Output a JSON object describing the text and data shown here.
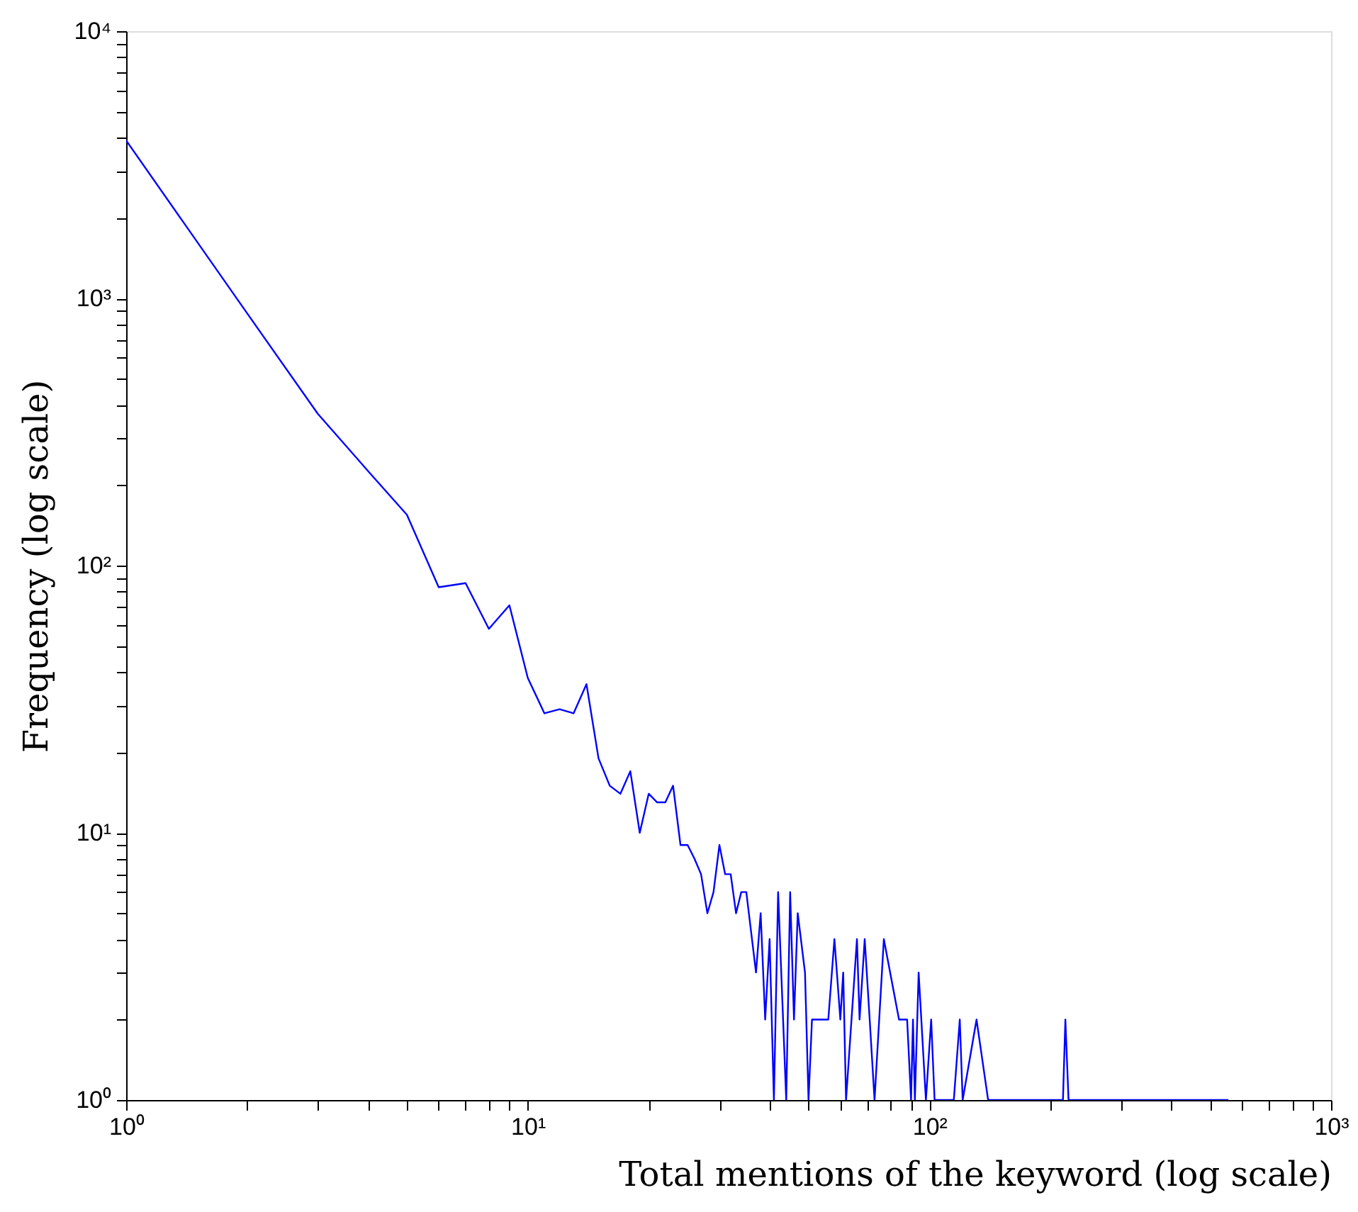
{
  "chart_data": {
    "type": "line",
    "xlabel": "Total mentions of the keyword (log scale)",
    "ylabel": "Frequency (log scale)",
    "log": "xy",
    "xlim": [
      1,
      1000
    ],
    "ylim": [
      1,
      10000
    ],
    "xticks": [
      {
        "value": 1,
        "label": "10⁰"
      },
      {
        "value": 2,
        "label": null
      },
      {
        "value": 3,
        "label": null
      },
      {
        "value": 4,
        "label": null
      },
      {
        "value": 5,
        "label": null
      },
      {
        "value": 6,
        "label": null
      },
      {
        "value": 7,
        "label": null
      },
      {
        "value": 8,
        "label": null
      },
      {
        "value": 9,
        "label": null
      },
      {
        "value": 10,
        "label": "10¹"
      },
      {
        "value": 20,
        "label": null
      },
      {
        "value": 30,
        "label": null
      },
      {
        "value": 40,
        "label": null
      },
      {
        "value": 50,
        "label": null
      },
      {
        "value": 60,
        "label": null
      },
      {
        "value": 70,
        "label": null
      },
      {
        "value": 80,
        "label": null
      },
      {
        "value": 90,
        "label": null
      },
      {
        "value": 100,
        "label": "10²"
      },
      {
        "value": 200,
        "label": null
      },
      {
        "value": 300,
        "label": null
      },
      {
        "value": 400,
        "label": null
      },
      {
        "value": 500,
        "label": null
      },
      {
        "value": 600,
        "label": null
      },
      {
        "value": 700,
        "label": null
      },
      {
        "value": 800,
        "label": null
      },
      {
        "value": 900,
        "label": null
      },
      {
        "value": 1000,
        "label": "10³"
      }
    ],
    "yticks": [
      {
        "value": 1,
        "label": "10⁰"
      },
      {
        "value": 2,
        "label": null
      },
      {
        "value": 3,
        "label": null
      },
      {
        "value": 4,
        "label": null
      },
      {
        "value": 5,
        "label": null
      },
      {
        "value": 6,
        "label": null
      },
      {
        "value": 7,
        "label": null
      },
      {
        "value": 8,
        "label": null
      },
      {
        "value": 9,
        "label": null
      },
      {
        "value": 10,
        "label": "10¹"
      },
      {
        "value": 20,
        "label": null
      },
      {
        "value": 30,
        "label": null
      },
      {
        "value": 40,
        "label": null
      },
      {
        "value": 50,
        "label": null
      },
      {
        "value": 60,
        "label": null
      },
      {
        "value": 70,
        "label": null
      },
      {
        "value": 80,
        "label": null
      },
      {
        "value": 90,
        "label": null
      },
      {
        "value": 100,
        "label": "10²"
      },
      {
        "value": 200,
        "label": null
      },
      {
        "value": 300,
        "label": null
      },
      {
        "value": 400,
        "label": null
      },
      {
        "value": 500,
        "label": null
      },
      {
        "value": 600,
        "label": null
      },
      {
        "value": 700,
        "label": null
      },
      {
        "value": 800,
        "label": null
      },
      {
        "value": 900,
        "label": null
      },
      {
        "value": 1000,
        "label": "10³"
      },
      {
        "value": 2000,
        "label": null
      },
      {
        "value": 3000,
        "label": null
      },
      {
        "value": 4000,
        "label": null
      },
      {
        "value": 5000,
        "label": null
      },
      {
        "value": 6000,
        "label": null
      },
      {
        "value": 7000,
        "label": null
      },
      {
        "value": 8000,
        "label": null
      },
      {
        "value": 9000,
        "label": null
      },
      {
        "value": 10000,
        "label": "10⁴"
      }
    ],
    "series": [
      {
        "color": "#0000ff",
        "line_style": "solid",
        "x": [
          1,
          2,
          3,
          4,
          5,
          6,
          7,
          8,
          9,
          10,
          11,
          12,
          13,
          14,
          15,
          16,
          17,
          18,
          19,
          20,
          21,
          22,
          23,
          24,
          25,
          26,
          27,
          28,
          29,
          30,
          31,
          32,
          33,
          34,
          35,
          37,
          38,
          39,
          40,
          41,
          42,
          44,
          45,
          46,
          47,
          49,
          50,
          51,
          56,
          58,
          60,
          61,
          62,
          66,
          67,
          69,
          71,
          73,
          77,
          84,
          88,
          90,
          91,
          92,
          94,
          98,
          101,
          103,
          115,
          119,
          121,
          131,
          140,
          215,
          218,
          222,
          555
        ],
        "values": [
          3900,
          880,
          370,
          226,
          155,
          83,
          86,
          58,
          71,
          38,
          28,
          29,
          28,
          36,
          19,
          15,
          14,
          17,
          10,
          14,
          13,
          13,
          15,
          9,
          9,
          8,
          7,
          5,
          6,
          9,
          7,
          7,
          5,
          6,
          6,
          3,
          5,
          2,
          4,
          1,
          6,
          1,
          6,
          2,
          5,
          3,
          1,
          2,
          2,
          4,
          2,
          3,
          1,
          4,
          2,
          4,
          2,
          1,
          4,
          2,
          2,
          1,
          2,
          1,
          3,
          1,
          2,
          1,
          1,
          2,
          1,
          2,
          1,
          1,
          2,
          1,
          1
        ]
      }
    ]
  }
}
